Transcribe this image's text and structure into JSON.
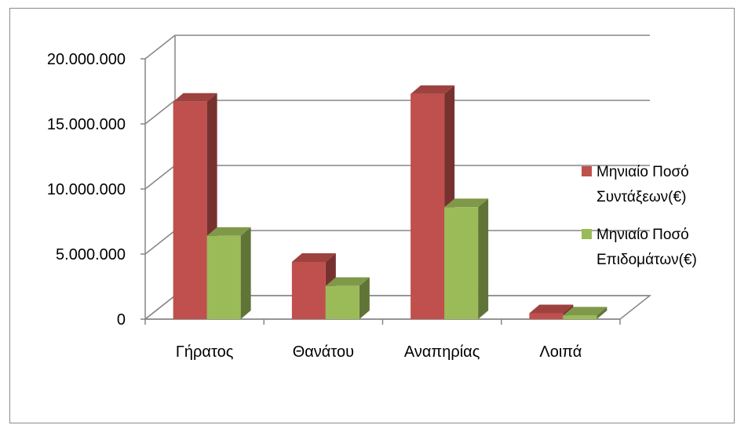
{
  "chart_data": {
    "type": "bar",
    "categories": [
      "Γήρατος",
      "Θανάτου",
      "Αναπηρίας",
      "Λοιπά"
    ],
    "series": [
      {
        "name": "Μηνιαίο Ποσό Συντάξεων(€)",
        "name_lines": [
          "Μηνιαίο Ποσό",
          "Συντάξεων(€)"
        ],
        "color": "#c0504d",
        "values": [
          16700000,
          4400000,
          17300000,
          450000
        ]
      },
      {
        "name": "Μηνιαίο Ποσό Επιδομάτων(€)",
        "name_lines": [
          "Μηνιαίο Ποσό",
          "Επιδομάτων(€)"
        ],
        "color": "#9bbb59",
        "values": [
          6400000,
          2550000,
          8600000,
          280000
        ]
      }
    ],
    "y_ticks": [
      "0",
      "5.000.000",
      "10.000.000",
      "15.000.000",
      "20.000.000"
    ],
    "ylim": [
      0,
      20000000
    ],
    "grid": true,
    "legend_position": "right",
    "style": "3d-clustered-column"
  }
}
